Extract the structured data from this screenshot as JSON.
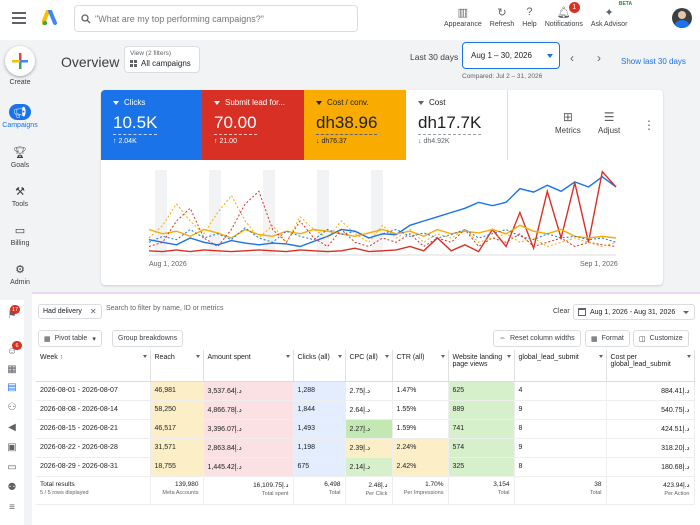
{
  "search": {
    "placeholder": "\"What are my top performing campaigns?\""
  },
  "top_actions": [
    {
      "label": "Appearance",
      "icon": "appearance-icon"
    },
    {
      "label": "Refresh",
      "icon": "refresh-icon"
    },
    {
      "label": "Help",
      "icon": "help-icon"
    },
    {
      "label": "Notifications",
      "icon": "bell-icon",
      "badge": "1"
    },
    {
      "label": "Ask Advisor",
      "icon": "advisor-icon",
      "badge": "BETA"
    }
  ],
  "nav": {
    "create": "Create",
    "items": [
      {
        "label": "Campaigns",
        "icon": "megaphone-icon",
        "active": true
      },
      {
        "label": "Goals",
        "icon": "trophy-icon"
      },
      {
        "label": "Tools",
        "icon": "tools-icon"
      },
      {
        "label": "Billing",
        "icon": "card-icon"
      },
      {
        "label": "Admin",
        "icon": "gear-icon"
      }
    ]
  },
  "header": {
    "title": "Overview",
    "view_label": "View (2 filters)",
    "view_value": "All campaigns",
    "last_label": "Last 30 days",
    "date_range": "Aug 1 – 30, 2026",
    "compared": "Compared: Jul 2 – 31, 2026",
    "show_last": "Show last 30 days"
  },
  "metrics": [
    {
      "name": "Clicks",
      "value": "10.5K",
      "delta": "↑ 2.04K",
      "color": "#1a73e8"
    },
    {
      "name": "Submit lead for...",
      "value": "70.00",
      "delta": "↑ 21.00",
      "color": "#d93025"
    },
    {
      "name": "Cost / conv.",
      "value": "dh38.96",
      "delta": "↓ dh76.37",
      "color": "#f9ab00"
    },
    {
      "name": "Cost",
      "value": "dh17.7K",
      "delta": "↓ dh4.92K",
      "color": "#ffffff"
    }
  ],
  "card_tools": {
    "metrics": "Metrics",
    "adjust": "Adjust"
  },
  "chart_data": {
    "type": "line",
    "x_start_label": "Aug 1, 2026",
    "x_end_label": "Sep 1, 2026",
    "grid": false,
    "series": [
      {
        "color": "#1a73e8",
        "dashed": false,
        "values": [
          0.18,
          0.15,
          0.12,
          0.2,
          0.15,
          0.12,
          0.17,
          0.14,
          0.12,
          0.14,
          0.13,
          0.1,
          0.16,
          0.22,
          0.3,
          0.28,
          0.2,
          0.25,
          0.24,
          0.35,
          0.4,
          0.45,
          0.5,
          0.55,
          0.62,
          0.58,
          0.62,
          0.78,
          0.74,
          0.82,
          0.75,
          0.86,
          0.8,
          0.92,
          0.8
        ]
      },
      {
        "color": "#d93025",
        "dashed": false,
        "values": [
          0.05,
          0.04,
          0.06,
          0.04,
          0.06,
          0.05,
          0.04,
          0.05,
          0.06,
          0.05,
          0.04,
          0.06,
          0.05,
          0.04,
          0.05,
          0.08,
          0.04,
          0.05,
          0.06,
          0.1,
          0.05,
          0.2,
          0.05,
          0.12,
          0.04,
          0.3,
          0.1,
          0.5,
          0.08,
          0.75,
          0.2,
          0.85,
          0.15,
          0.98,
          0.8
        ]
      },
      {
        "color": "#f9ab00",
        "dashed": false,
        "values": [
          0.3,
          0.25,
          0.28,
          0.22,
          0.3,
          0.26,
          0.2,
          0.3,
          0.24,
          0.22,
          0.28,
          0.25,
          0.3,
          0.28,
          0.25,
          0.22,
          0.26,
          0.3,
          0.25,
          0.28,
          0.22,
          0.3,
          0.25,
          0.28,
          0.26,
          0.3,
          0.25,
          0.35,
          0.28,
          0.25,
          0.3,
          0.22,
          0.2,
          0.22,
          0.2
        ]
      },
      {
        "color": "#1a73e8",
        "dashed": true,
        "values": [
          0.15,
          0.22,
          0.18,
          0.3,
          0.2,
          0.25,
          0.18,
          0.32,
          0.2,
          0.15,
          0.28,
          0.22,
          0.18,
          0.3,
          0.24,
          0.28,
          0.2,
          0.25,
          0.3,
          0.22,
          0.26,
          0.2,
          0.24,
          0.3,
          0.2,
          0.25,
          0.3,
          0.22,
          0.18,
          0.25,
          0.2,
          0.22,
          0.18,
          0.2,
          0.15
        ]
      },
      {
        "color": "#d93025",
        "dashed": true,
        "values": [
          0.1,
          0.15,
          0.4,
          0.55,
          0.2,
          0.1,
          0.3,
          0.6,
          0.75,
          0.3,
          0.15,
          0.4,
          0.2,
          0.1,
          0.3,
          0.15,
          0.1,
          0.2,
          0.15,
          0.25,
          0.1,
          0.2,
          0.15,
          0.3,
          0.1,
          0.2,
          0.15,
          0.25,
          0.1,
          0.15,
          0.2,
          0.1,
          0.15,
          0.12,
          0.1
        ]
      },
      {
        "color": "#f9ab00",
        "dashed": true,
        "values": [
          0.2,
          0.35,
          0.6,
          0.4,
          0.25,
          0.5,
          0.7,
          0.4,
          0.2,
          0.35,
          0.15,
          0.45,
          0.3,
          0.2,
          0.4,
          0.25,
          0.15,
          0.35,
          0.2,
          0.3,
          0.15,
          0.25,
          0.2,
          0.3,
          0.15,
          0.2,
          0.25,
          0.15,
          0.2,
          0.1,
          0.15,
          0.2,
          0.15,
          0.1,
          0.15
        ]
      }
    ]
  },
  "filters": {
    "chip": "Had delivery",
    "placeholder": "Search to filter by name, ID or metrics",
    "clear": "Clear",
    "date_range": "Aug 1, 2026 - Aug 31, 2026"
  },
  "toolbar": {
    "pivot": "Pivot table",
    "group": "Group breakdowns",
    "reset": "Reset column widths",
    "format": "Format",
    "customize": "Customize"
  },
  "table": {
    "columns": [
      "Week",
      "Reach",
      "Amount spent",
      "Clicks (all)",
      "CPC (all)",
      "CTR (all)",
      "Website landing page views",
      "global_lead_submit",
      "Cost per global_lead_submit"
    ],
    "rows": [
      [
        "2026-08-01 - 2026-08-07",
        "46,981",
        "3,537.64د.إ",
        "1,288",
        "2.75د.إ",
        "1.47%",
        "625",
        "4",
        "884.41د.إ"
      ],
      [
        "2026-08-08 - 2026-08-14",
        "58,250",
        "4,866.78د.إ",
        "1,844",
        "2.64د.إ",
        "1.55%",
        "889",
        "9",
        "540.75د.إ"
      ],
      [
        "2026-08-15 - 2026-08-21",
        "46,517",
        "3,396.07د.إ",
        "1,493",
        "2.27د.إ",
        "1.59%",
        "741",
        "8",
        "424.51د.إ"
      ],
      [
        "2026-08-22 - 2026-08-28",
        "31,571",
        "2,863.84د.إ",
        "1,198",
        "2.39د.إ",
        "2.24%",
        "574",
        "9",
        "318.20د.إ"
      ],
      [
        "2026-08-29 - 2026-08-31",
        "18,755",
        "1,445.42د.إ",
        "675",
        "2.14د.إ",
        "2.42%",
        "325",
        "8",
        "180.68د.إ"
      ]
    ],
    "totals": {
      "label": "Total results",
      "sublabel": "5 / 5 rows displayed",
      "values": [
        "139,980",
        "16,109.75د.إ",
        "6,498",
        "2.48د.إ",
        "1.70%",
        "3,154",
        "38",
        "423.94د.إ"
      ],
      "subs": [
        "Meta Accounts",
        "Total spent",
        "Total",
        "Per Click",
        "Per Impressions",
        "Total",
        "Total",
        "Per Action"
      ]
    }
  },
  "sidebar2": {
    "badge_top": "17",
    "badge_mid": "6"
  }
}
